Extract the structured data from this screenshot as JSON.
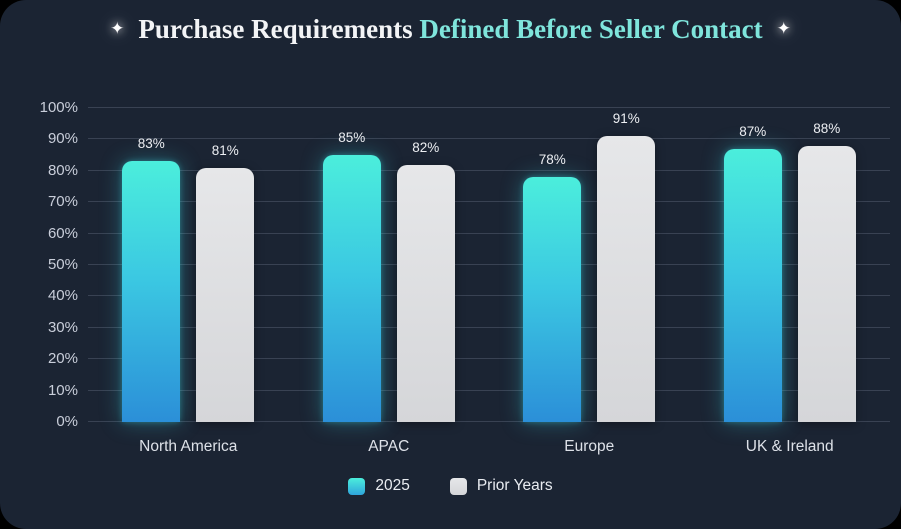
{
  "title": {
    "sparkle_left": "✦",
    "part_primary": "Purchase Requirements",
    "part_accent": "Defined Before Seller Contact",
    "sparkle_right": "✦"
  },
  "colors": {
    "outer_background": "#000000",
    "card_background": "#1B2433",
    "title_primary": "#F3F4F6",
    "title_accent": "#7FE5DC",
    "grid_line": "#394253",
    "axis_text": "#C9CEDA",
    "value_label_text": "#EDEFF3",
    "bar_2025_gradient_top": "#4BEEDC",
    "bar_2025_gradient_bottom": "#2B8FD8",
    "bar_prior_years": "#DCDDDF",
    "bar_2025_glow": "rgba(61,216,226,0.35)"
  },
  "chart_data": {
    "type": "bar",
    "title": "Purchase Requirements Defined Before Seller Contact",
    "categories": [
      "North America",
      "APAC",
      "Europe",
      "UK & Ireland"
    ],
    "series": [
      {
        "name": "2025",
        "values": [
          83,
          85,
          78,
          87
        ]
      },
      {
        "name": "Prior Years",
        "values": [
          81,
          82,
          91,
          88
        ]
      }
    ],
    "value_labels": [
      [
        "83%",
        "85%",
        "78%",
        "87%"
      ],
      [
        "81%",
        "82%",
        "91%",
        "88%"
      ]
    ],
    "xlabel": "",
    "ylabel": "",
    "ylim": [
      0,
      100
    ],
    "ytick_step": 10,
    "ytick_labels": [
      "0%",
      "10%",
      "20%",
      "30%",
      "40%",
      "50%",
      "60%",
      "70%",
      "80%",
      "90%",
      "100%"
    ],
    "grid": true,
    "grid_orientation": "horizontal",
    "legend_position": "bottom",
    "bar_value_labels": true
  }
}
